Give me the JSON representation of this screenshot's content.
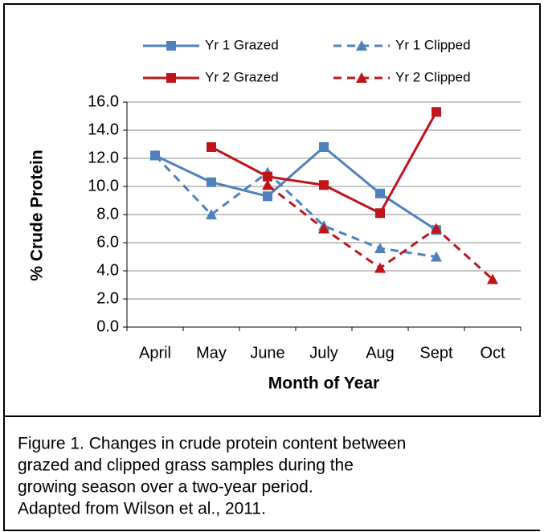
{
  "chart_data": {
    "type": "line",
    "y_label": "% Crude Protein",
    "x_label": "Month of Year",
    "categories": [
      "April",
      "May",
      "June",
      "July",
      "Aug",
      "Sept",
      "Oct"
    ],
    "series": [
      {
        "name": "Yr 1 Grazed",
        "color": "#4f81bd",
        "dashed": false,
        "marker": "square",
        "values": [
          12.2,
          10.3,
          9.3,
          12.8,
          9.5,
          6.9,
          null
        ]
      },
      {
        "name": "Yr 1 Clipped",
        "color": "#4f81bd",
        "dashed": true,
        "marker": "triangle",
        "values": [
          12.2,
          8.0,
          11.0,
          7.2,
          5.6,
          5.0,
          null
        ]
      },
      {
        "name": "Yr 2 Grazed",
        "color": "#c0141b",
        "dashed": false,
        "marker": "square",
        "values": [
          null,
          12.8,
          10.7,
          10.1,
          8.1,
          15.3,
          null
        ]
      },
      {
        "name": "Yr 2 Clipped",
        "color": "#c0141b",
        "dashed": true,
        "marker": "triangle",
        "values": [
          null,
          null,
          10.1,
          7.0,
          4.2,
          7.0,
          3.4
        ]
      }
    ],
    "ylim": [
      0,
      16
    ],
    "yticks": [
      {
        "value": 0,
        "label": "0.0"
      },
      {
        "value": 2,
        "label": "2.0"
      },
      {
        "value": 4,
        "label": "4.0"
      },
      {
        "value": 6,
        "label": "6.0"
      },
      {
        "value": 8,
        "label": "8.0"
      },
      {
        "value": 10,
        "label": "10.0"
      },
      {
        "value": 12,
        "label": "12.0"
      },
      {
        "value": 14,
        "label": "14.0"
      },
      {
        "value": 16,
        "label": "16.0"
      }
    ],
    "grid": true,
    "caption": [
      "Figure 1.  Changes in crude protein content between",
      "grazed and clipped grass samples during the",
      "growing season over a two-year period.",
      "Adapted from Wilson et al., 2011."
    ]
  }
}
